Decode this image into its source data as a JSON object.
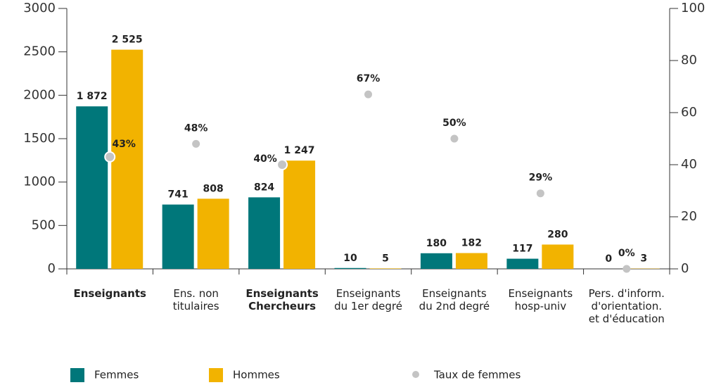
{
  "chart_data": {
    "type": "bar",
    "categories": [
      "Enseignants",
      "Ens. non\ntitulaires",
      "Enseignants\nChercheurs",
      "Enseignants\ndu 1er degré",
      "Enseignants\ndu 2nd degré",
      "Enseignants\nhosp-univ",
      "Pers. d'inform.\nd'orientation.\net d'éducation"
    ],
    "highlight_categories": [
      0,
      2
    ],
    "series": [
      {
        "name": "Femmes",
        "color": "#00777a",
        "values": [
          1872,
          741,
          824,
          10,
          180,
          117,
          0
        ],
        "value_labels": [
          "1 872",
          "741",
          "824",
          "10",
          "180",
          "117",
          "0"
        ]
      },
      {
        "name": "Hommes",
        "color": "#f2b300",
        "values": [
          2525,
          808,
          1247,
          5,
          182,
          280,
          3
        ],
        "value_labels": [
          "2 525",
          "808",
          "1 247",
          "5",
          "182",
          "280",
          "3"
        ]
      },
      {
        "name": "Taux de femmes",
        "type": "scatter",
        "axis": "y2",
        "color": "#c4c4c4",
        "values": [
          43,
          48,
          40,
          67,
          50,
          29,
          0
        ],
        "value_labels": [
          "43%",
          "48%",
          "40%",
          "67%",
          "50%",
          "29%",
          "0%"
        ]
      }
    ],
    "ylim": [
      0,
      3000
    ],
    "yticks": [
      0,
      500,
      1000,
      1500,
      2000,
      2500,
      3000
    ],
    "y2lim": [
      0,
      100
    ],
    "y2ticks": [
      0,
      20,
      40,
      60,
      80,
      100
    ]
  }
}
